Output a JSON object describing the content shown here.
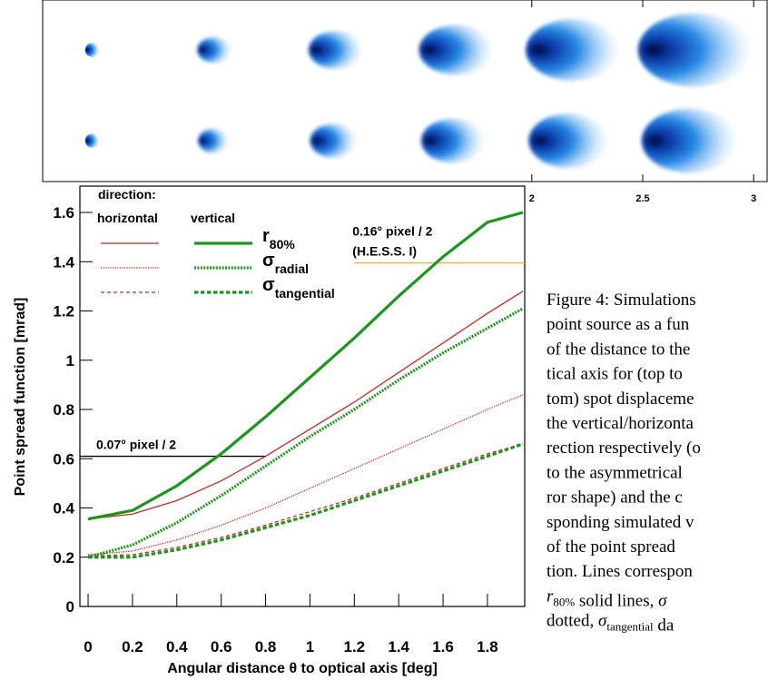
{
  "strip": {
    "xticks": [
      2,
      2.5,
      3
    ]
  },
  "chart_data": {
    "type": "line",
    "xlabel": "Angular distance θ to optical axis [deg]",
    "ylabel": "Point spread function [mrad]",
    "x": [
      0,
      0.2,
      0.4,
      0.6,
      0.8,
      1,
      1.2,
      1.4,
      1.6,
      1.8,
      1.96
    ],
    "xlim": [
      -0.037,
      1.968
    ],
    "ylim": [
      0,
      1.707
    ],
    "xticks": [
      0,
      0.2,
      0.4,
      0.6,
      0.8,
      1,
      1.2,
      1.4,
      1.6,
      1.8
    ],
    "yticks": [
      0,
      0.2,
      0.4,
      0.6,
      0.8,
      1,
      1.2,
      1.4,
      1.6
    ],
    "legend": {
      "title": "direction:",
      "directions": [
        {
          "name": "horizontal",
          "color": "#c8281e",
          "width": 1.3
        },
        {
          "name": "vertical",
          "color": "#1e961e",
          "width": 3.2
        }
      ],
      "quantities": [
        {
          "symbol": "r",
          "subscript": "80%",
          "dash": "solid"
        },
        {
          "symbol": "σ",
          "subscript": "radial",
          "dash": "dotted"
        },
        {
          "symbol": "σ",
          "subscript": "tangential",
          "dash": "dashed"
        }
      ]
    },
    "series": [
      {
        "direction": 0,
        "quantity": 0,
        "values": [
          0.355,
          0.375,
          0.43,
          0.51,
          0.61,
          0.72,
          0.83,
          0.95,
          1.07,
          1.19,
          1.28
        ]
      },
      {
        "direction": 1,
        "quantity": 0,
        "values": [
          0.355,
          0.39,
          0.49,
          0.62,
          0.77,
          0.93,
          1.09,
          1.26,
          1.42,
          1.56,
          1.6
        ]
      },
      {
        "direction": 0,
        "quantity": 1,
        "values": [
          0.21,
          0.225,
          0.27,
          0.33,
          0.4,
          0.48,
          0.56,
          0.64,
          0.72,
          0.8,
          0.86
        ]
      },
      {
        "direction": 1,
        "quantity": 1,
        "values": [
          0.2,
          0.25,
          0.34,
          0.45,
          0.57,
          0.69,
          0.8,
          0.92,
          1.03,
          1.13,
          1.21
        ]
      },
      {
        "direction": 0,
        "quantity": 2,
        "values": [
          0.205,
          0.21,
          0.24,
          0.28,
          0.33,
          0.385,
          0.44,
          0.5,
          0.56,
          0.62,
          0.66
        ]
      },
      {
        "direction": 1,
        "quantity": 2,
        "values": [
          0.2,
          0.2,
          0.23,
          0.27,
          0.32,
          0.37,
          0.43,
          0.49,
          0.55,
          0.61,
          0.66
        ]
      }
    ],
    "reference_lines": [
      {
        "labels": [
          "0.07° pixel / 2"
        ],
        "y": 0.61,
        "x": [
          -0.037,
          0.8
        ],
        "color": "#000000"
      },
      {
        "labels": [
          "0.16° pixel / 2",
          "(H.E.S.S. I)"
        ],
        "y": 1.395,
        "x": [
          1.2,
          1.968
        ],
        "color": "#f0b030"
      }
    ]
  },
  "caption": {
    "lines": [
      [
        "Figure 4: Simulations"
      ],
      [
        "point source as a fun"
      ],
      [
        "of the distance to the"
      ],
      [
        "tical axis for (top to"
      ],
      [
        "tom) spot displaceme"
      ],
      [
        "the vertical/horizonta"
      ],
      [
        "rection respectively (o"
      ],
      [
        "to the asymmetrical"
      ],
      [
        "ror shape) and the c"
      ],
      [
        "sponding simulated v"
      ],
      [
        "of the point spread"
      ],
      [
        "tion. Lines correspon"
      ],
      [
        {
          "text": "r",
          "sub": "80%"
        },
        " solid lines, ",
        {
          "text": "σ"
        }
      ],
      [
        "dotted, ",
        {
          "text": "σ",
          "sub": "tangential"
        },
        " da"
      ]
    ]
  }
}
